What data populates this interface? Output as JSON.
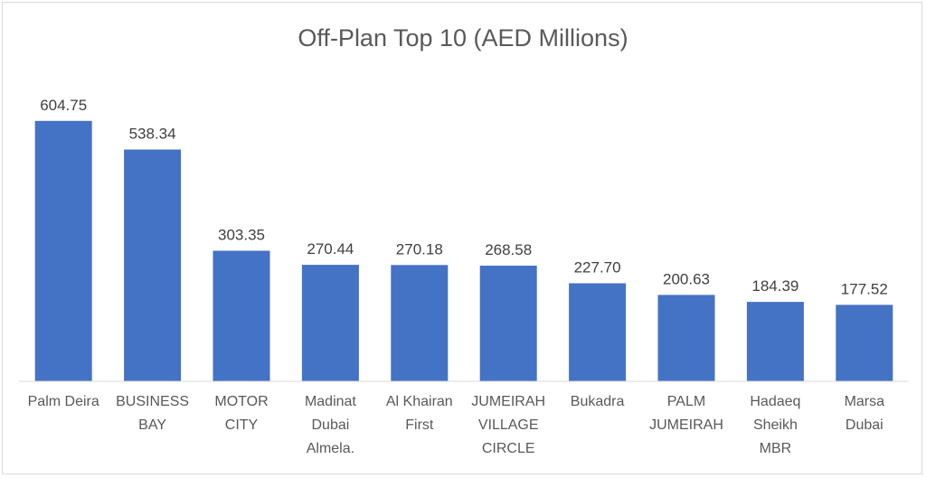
{
  "chart_data": {
    "type": "bar",
    "title": "Off-Plan Top 10 (AED Millions)",
    "xlabel": "",
    "ylabel": "",
    "ylim": [
      0,
      650
    ],
    "grid": false,
    "legend": "none",
    "bar_color": "#4472c4",
    "categories": [
      "Palm Deira",
      "BUSINESS BAY",
      "MOTOR CITY",
      "Madinat Dubai Almela.",
      "Al Khairan First",
      "JUMEIRAH VILLAGE CIRCLE",
      "Bukadra",
      "PALM JUMEIRAH",
      "Hadaeq Sheikh MBR",
      "Marsa Dubai"
    ],
    "category_lines": [
      [
        "Palm Deira"
      ],
      [
        "BUSINESS",
        "BAY"
      ],
      [
        "MOTOR",
        "CITY"
      ],
      [
        "Madinat",
        "Dubai",
        "Almela."
      ],
      [
        "Al Khairan",
        "First"
      ],
      [
        "JUMEIRAH",
        "VILLAGE",
        "CIRCLE"
      ],
      [
        "Bukadra"
      ],
      [
        "PALM",
        "JUMEIRAH"
      ],
      [
        "Hadaeq",
        "Sheikh",
        "MBR"
      ],
      [
        "Marsa",
        "Dubai"
      ]
    ],
    "values": [
      604.75,
      538.34,
      303.35,
      270.44,
      270.18,
      268.58,
      227.7,
      200.63,
      184.39,
      177.52
    ],
    "value_labels": [
      "604.75",
      "538.34",
      "303.35",
      "270.44",
      "270.18",
      "268.58",
      "227.70",
      "200.63",
      "184.39",
      "177.52"
    ]
  }
}
